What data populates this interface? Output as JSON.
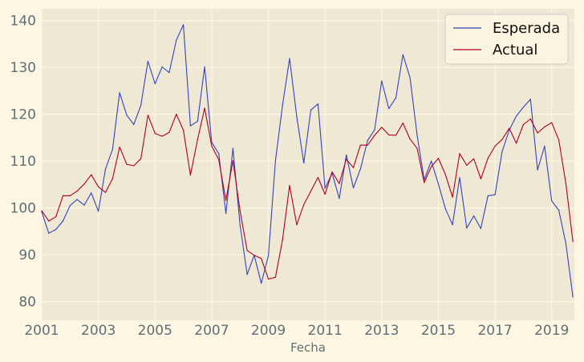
{
  "colors": {
    "figure_background": "#fdf6e3",
    "plot_background": "#eee8d5",
    "grid": "#fdf6e3",
    "tick_text": "#5f6f77",
    "legend_border": "#cccccc"
  },
  "chart_data": {
    "type": "line",
    "title": "",
    "xlabel": "Fecha",
    "ylabel": "",
    "xlim": [
      2001.0,
      2019.8
    ],
    "ylim": [
      76,
      142.5
    ],
    "x_ticks": [
      2001,
      2003,
      2005,
      2007,
      2009,
      2011,
      2013,
      2015,
      2017,
      2019
    ],
    "x_tick_labels": [
      "2001",
      "2003",
      "2005",
      "2007",
      "2009",
      "2011",
      "2013",
      "2015",
      "2017",
      "2019"
    ],
    "y_ticks": [
      80,
      90,
      100,
      110,
      120,
      130,
      140
    ],
    "y_tick_labels": [
      "80",
      "90",
      "100",
      "110",
      "120",
      "130",
      "140"
    ],
    "grid": true,
    "legend_position": "top-right",
    "x": [
      2001.0,
      2001.25,
      2001.5,
      2001.75,
      2002.0,
      2002.25,
      2002.5,
      2002.75,
      2003.0,
      2003.25,
      2003.5,
      2003.75,
      2004.0,
      2004.25,
      2004.5,
      2004.75,
      2005.0,
      2005.25,
      2005.5,
      2005.75,
      2006.0,
      2006.25,
      2006.5,
      2006.75,
      2007.0,
      2007.25,
      2007.5,
      2007.75,
      2008.0,
      2008.25,
      2008.5,
      2008.75,
      2009.0,
      2009.25,
      2009.5,
      2009.75,
      2010.0,
      2010.25,
      2010.5,
      2010.75,
      2011.0,
      2011.25,
      2011.5,
      2011.75,
      2012.0,
      2012.25,
      2012.5,
      2012.75,
      2013.0,
      2013.25,
      2013.5,
      2013.75,
      2014.0,
      2014.25,
      2014.5,
      2014.75,
      2015.0,
      2015.25,
      2015.5,
      2015.75,
      2016.0,
      2016.25,
      2016.5,
      2016.75,
      2017.0,
      2017.25,
      2017.5,
      2017.75,
      2018.0,
      2018.25,
      2018.5,
      2018.75,
      2019.0,
      2019.25,
      2019.5,
      2019.75
    ],
    "series": [
      {
        "name": "Esperada",
        "color": "#3344bb",
        "values": [
          99.2,
          94.6,
          95.4,
          97.2,
          100.5,
          101.8,
          100.6,
          103.2,
          99.3,
          108.3,
          112.5,
          124.6,
          119.8,
          117.8,
          121.9,
          131.3,
          126.5,
          130.1,
          128.9,
          135.8,
          139.1,
          117.5,
          118.5,
          130.1,
          114.0,
          111.6,
          98.8,
          112.7,
          96.4,
          85.8,
          89.9,
          83.9,
          89.8,
          110.1,
          121.9,
          131.9,
          119.5,
          109.6,
          120.9,
          122.2,
          104.2,
          107.4,
          102.0,
          111.3,
          104.3,
          108.3,
          114.4,
          116.7,
          127.1,
          121.2,
          123.5,
          132.7,
          127.8,
          115.5,
          106.0,
          110.0,
          105.1,
          99.8,
          96.4,
          106.5,
          95.7,
          98.3,
          95.6,
          102.6,
          102.8,
          112.0,
          116.6,
          119.6,
          121.5,
          123.2,
          108.1,
          113.2,
          101.5,
          99.5,
          92.4,
          81.0
        ]
      },
      {
        "name": "Actual",
        "color": "#b0001e",
        "values": [
          99.4,
          97.2,
          98.1,
          102.6,
          102.6,
          103.6,
          105.1,
          107.1,
          104.5,
          103.3,
          106.2,
          113.0,
          109.3,
          109.0,
          110.5,
          119.8,
          115.9,
          115.3,
          116.1,
          120.0,
          116.6,
          107.0,
          114.6,
          121.3,
          113.2,
          110.3,
          101.6,
          110.1,
          99.4,
          90.9,
          89.9,
          89.2,
          84.8,
          85.2,
          93.2,
          104.8,
          96.4,
          100.7,
          103.6,
          106.5,
          102.9,
          107.7,
          105.2,
          110.4,
          108.6,
          113.4,
          113.4,
          115.5,
          117.2,
          115.6,
          115.5,
          118.1,
          114.7,
          112.7,
          105.4,
          108.8,
          110.6,
          107.1,
          102.3,
          111.6,
          109.1,
          110.5,
          106.2,
          110.6,
          113.2,
          114.6,
          117.0,
          113.8,
          117.8,
          119.0,
          116.0,
          117.3,
          118.2,
          114.5,
          105.2,
          92.8
        ]
      }
    ]
  }
}
